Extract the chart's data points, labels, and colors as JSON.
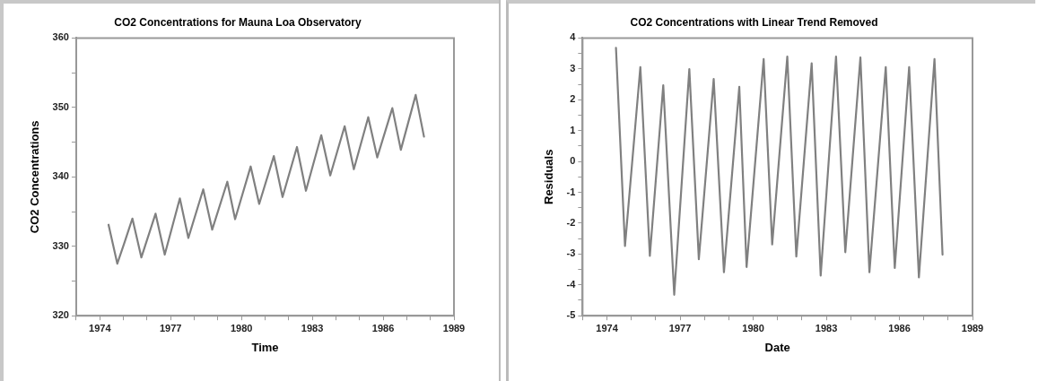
{
  "chart_data": [
    {
      "type": "line",
      "title": "CO2 Concentrations for Mauna Loa Observatory",
      "xlabel": "Time",
      "ylabel": "CO2 Concentrations",
      "x": [
        1974.37,
        1974.74,
        1975.05,
        1975.38,
        1975.76,
        1976.36,
        1976.75,
        1977.39,
        1977.75,
        1978.38,
        1978.76,
        1979.4,
        1979.73,
        1980.39,
        1980.75,
        1981.37,
        1981.74,
        1982.35,
        1982.73,
        1983.38,
        1983.76,
        1984.37,
        1984.76,
        1985.37,
        1985.75,
        1986.39,
        1986.75,
        1987.38,
        1987.73
      ],
      "series": [
        {
          "color": "#808080",
          "values": [
            333.1,
            327.5,
            330.6,
            334.0,
            328.4,
            334.7,
            328.8,
            336.9,
            331.2,
            338.2,
            332.4,
            339.3,
            333.9,
            341.5,
            336.1,
            343.0,
            337.1,
            344.3,
            338.0,
            346.0,
            340.2,
            347.3,
            341.1,
            348.6,
            342.8,
            349.9,
            343.9,
            351.8,
            345.8
          ]
        }
      ],
      "xlim": [
        1973,
        1989
      ],
      "xticks": [
        {
          "value": 1973,
          "label": null
        },
        1974,
        {
          "value": 1975,
          "label": null
        },
        {
          "value": 1976,
          "label": null
        },
        1977,
        {
          "value": 1978,
          "label": null
        },
        {
          "value": 1979,
          "label": null
        },
        1980,
        {
          "value": 1981,
          "label": null
        },
        {
          "value": 1982,
          "label": null
        },
        1983,
        {
          "value": 1984,
          "label": null
        },
        {
          "value": 1985,
          "label": null
        },
        1986,
        {
          "value": 1987,
          "label": null
        },
        {
          "value": 1988,
          "label": null
        },
        1989
      ],
      "ylim": [
        320,
        360
      ],
      "yticks": [
        320,
        {
          "value": 325,
          "label": null
        },
        330,
        {
          "value": 335,
          "label": null
        },
        340,
        {
          "value": 345,
          "label": null
        },
        350,
        {
          "value": 355,
          "label": null
        },
        360
      ],
      "grid": false,
      "legend": false,
      "marker": "none",
      "line_style": "solid"
    },
    {
      "type": "line",
      "title": "CO2 Concentrations with Linear Trend Removed",
      "xlabel": "Date",
      "ylabel": "Residuals",
      "x": [
        1974.37,
        1974.74,
        1975.37,
        1975.76,
        1976.31,
        1976.76,
        1977.38,
        1977.77,
        1978.38,
        1978.8,
        1979.43,
        1979.73,
        1980.43,
        1980.78,
        1981.4,
        1981.77,
        1982.4,
        1982.77,
        1983.4,
        1983.78,
        1984.4,
        1984.77,
        1985.44,
        1985.81,
        1986.4,
        1986.8,
        1987.44,
        1987.77
      ],
      "series": [
        {
          "color": "#808080",
          "values": [
            3.68,
            -2.74,
            3.06,
            -3.06,
            2.47,
            -4.32,
            2.99,
            -3.17,
            2.67,
            -3.59,
            2.42,
            -3.42,
            3.32,
            -2.69,
            3.4,
            -3.08,
            3.18,
            -3.7,
            3.4,
            -2.94,
            3.37,
            -3.59,
            3.06,
            -3.45,
            3.06,
            -3.76,
            3.32,
            -3.02
          ]
        }
      ],
      "xlim": [
        1973,
        1989
      ],
      "xticks": [
        {
          "value": 1973,
          "label": null
        },
        1974,
        {
          "value": 1975,
          "label": null
        },
        {
          "value": 1976,
          "label": null
        },
        1977,
        {
          "value": 1978,
          "label": null
        },
        {
          "value": 1979,
          "label": null
        },
        1980,
        {
          "value": 1981,
          "label": null
        },
        {
          "value": 1982,
          "label": null
        },
        1983,
        {
          "value": 1984,
          "label": null
        },
        {
          "value": 1985,
          "label": null
        },
        1986,
        {
          "value": 1987,
          "label": null
        },
        {
          "value": 1988,
          "label": null
        },
        1989
      ],
      "ylim": [
        -5,
        4
      ],
      "yticks": [
        -5,
        {
          "value": -4.5,
          "label": null
        },
        -4,
        {
          "value": -3.5,
          "label": null
        },
        -3,
        {
          "value": -2.5,
          "label": null
        },
        -2,
        {
          "value": -1.5,
          "label": null
        },
        -1,
        {
          "value": -0.5,
          "label": null
        },
        0,
        {
          "value": 0.5,
          "label": null
        },
        1,
        {
          "value": 1.5,
          "label": null
        },
        2,
        {
          "value": 2.5,
          "label": null
        },
        3,
        {
          "value": 3.5,
          "label": null
        },
        4
      ],
      "grid": false,
      "legend": false,
      "marker": "none",
      "line_style": "solid"
    }
  ]
}
